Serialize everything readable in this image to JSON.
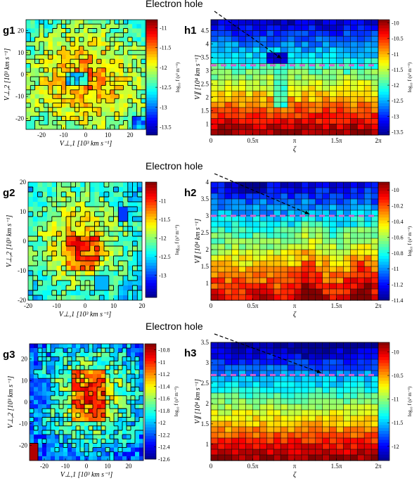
{
  "annotation_text": "Electron hole",
  "palette": [
    "#00008f",
    "#0000ff",
    "#0080ff",
    "#00ffff",
    "#80ff80",
    "#ffff00",
    "#ff8000",
    "#ff0000",
    "#800000"
  ],
  "hole_marker_color": "#d65fd0",
  "chart_data": [
    {
      "id": "g1",
      "type": "heatmap",
      "panel_label": "g1",
      "xlabel": "V⊥,1 [10³ km s⁻¹]",
      "ylabel": "V⊥,2 [10³ km s⁻¹]",
      "xlim": [
        -27,
        27
      ],
      "ylim": [
        -25,
        25
      ],
      "xticks": [
        -20,
        -10,
        0,
        10,
        20
      ],
      "xticklabels": [
        "-20",
        "-10",
        "0",
        "10",
        "20"
      ],
      "yticks": [
        -20,
        -10,
        0,
        10,
        20
      ],
      "yticklabels": [
        "-20",
        "-10",
        "0",
        "10",
        "20"
      ],
      "grid_cells": [
        27,
        25
      ],
      "clabel": "log₁₀ f (s³ m⁻⁶)",
      "clim": [
        -13.7,
        -10.8
      ],
      "cticks": [
        -11,
        -11.5,
        -12,
        -12.5,
        -13,
        -13.5
      ],
      "cticklabels": [
        "-11",
        "-11.5",
        "-12",
        "-12.5",
        "-13",
        "-13.5"
      ],
      "contours": true,
      "cell_grid": false
    },
    {
      "id": "h1",
      "type": "heatmap",
      "panel_label": "h1",
      "xlabel": "ζ",
      "ylabel": "V∥ [10⁴ km s⁻¹]",
      "xlim": [
        0,
        6.283
      ],
      "ylim": [
        0.6,
        4.9
      ],
      "xticks": [
        0,
        1.5708,
        3.1416,
        4.7124,
        6.2832
      ],
      "xticklabels": [
        "0",
        "0.5π",
        "π",
        "1.5π",
        "2π"
      ],
      "yticks": [
        1,
        1.5,
        2,
        2.5,
        3,
        3.5,
        4,
        4.5
      ],
      "yticklabels": [
        "1",
        "1.5",
        "2",
        "2.5",
        "3",
        "3.5",
        "4",
        "4.5"
      ],
      "grid_cells": [
        24,
        21
      ],
      "clabel": "log₁₀ f (s³ m⁻⁶)",
      "clim": [
        -13.6,
        -9.9
      ],
      "cticks": [
        -10,
        -10.5,
        -11,
        -11.5,
        -12,
        -12.5,
        -13,
        -13.5
      ],
      "cticklabels": [
        "-10",
        "-10.5",
        "-11",
        "-11.5",
        "-12",
        "-12.5",
        "-13",
        "-13.5"
      ],
      "contours": false,
      "cell_grid": true,
      "hole_velocity": 3.2,
      "arrow_target": {
        "x": 2.65,
        "y": 3.45
      }
    },
    {
      "id": "g2",
      "type": "heatmap",
      "panel_label": "g2",
      "xlabel": "V⊥,1 [10³ km s⁻¹]",
      "ylabel": "V⊥,2 [10³ km s⁻¹]",
      "xlim": [
        -20,
        20
      ],
      "ylim": [
        -20,
        20
      ],
      "xticks": [
        -20,
        -10,
        0,
        10,
        20
      ],
      "xticklabels": [
        "-20",
        "-10",
        "0",
        "10",
        "20"
      ],
      "yticks": [
        -20,
        -10,
        0,
        10,
        20
      ],
      "yticklabels": [
        "-20",
        "-10",
        "0",
        "10",
        "20"
      ],
      "grid_cells": [
        24,
        24
      ],
      "clabel": "log₁₀ f (s³ m⁻⁶)",
      "clim": [
        -13.6,
        -10.5
      ],
      "cticks": [
        -11,
        -11.5,
        -12,
        -12.5,
        -13
      ],
      "cticklabels": [
        "-11",
        "-11.5",
        "-12",
        "-12.5",
        "-13"
      ],
      "contours": true,
      "cell_grid": false
    },
    {
      "id": "h2",
      "type": "heatmap",
      "panel_label": "h2",
      "xlabel": "ζ",
      "ylabel": "V∥ [10⁴ km s⁻¹]",
      "xlim": [
        0,
        6.283
      ],
      "ylim": [
        0.5,
        4.0
      ],
      "xticks": [
        0,
        1.5708,
        3.1416,
        4.7124,
        6.2832
      ],
      "xticklabels": [
        "0",
        "0.5π",
        "π",
        "1.5π",
        "2π"
      ],
      "yticks": [
        1,
        1.5,
        2,
        2.5,
        3,
        3.5,
        4
      ],
      "yticklabels": [
        "1",
        "1.5",
        "2",
        "2.5",
        "3",
        "3.5",
        "4"
      ],
      "grid_cells": [
        24,
        21
      ],
      "clabel": "log₁₀ f (s³ m⁻⁶)",
      "clim": [
        -11.4,
        -9.9
      ],
      "cticks": [
        -10,
        -10.2,
        -10.4,
        -10.6,
        -10.8,
        -11,
        -11.2,
        -11.4
      ],
      "cticklabels": [
        "-10",
        "-10.2",
        "-10.4",
        "-10.6",
        "-10.8",
        "-11",
        "-11.2",
        "-11.4"
      ],
      "contours": false,
      "cell_grid": true,
      "hole_velocity": 3.0,
      "arrow_target": {
        "x": 3.7,
        "y": 3.05
      }
    },
    {
      "id": "g3",
      "type": "heatmap",
      "panel_label": "g3",
      "xlabel": "V⊥,1 [10³ km s⁻¹]",
      "ylabel": "V⊥,2 [10³ km s⁻¹]",
      "xlim": [
        -27,
        27
      ],
      "ylim": [
        -27,
        27
      ],
      "xticks": [
        -20,
        -10,
        0,
        10,
        20
      ],
      "xticklabels": [
        "-20",
        "-10",
        "0",
        "10",
        "20"
      ],
      "yticks": [
        -20,
        -10,
        0,
        10,
        20
      ],
      "yticklabels": [
        "-20",
        "-10",
        "0",
        "10",
        "20"
      ],
      "grid_cells": [
        27,
        27
      ],
      "clabel": "log₁₀ f (s³ m⁻⁶)",
      "clim": [
        -12.6,
        -10.7
      ],
      "cticks": [
        -10.8,
        -11,
        -11.2,
        -11.4,
        -11.6,
        -11.8,
        -12,
        -12.2,
        -12.4,
        -12.6
      ],
      "cticklabels": [
        "-10.8",
        "-11",
        "-11.2",
        "-11.4",
        "-11.6",
        "-11.8",
        "-12",
        "-12.2",
        "-12.4",
        "-12.6"
      ],
      "contours": true,
      "cell_grid": false
    },
    {
      "id": "h3",
      "type": "heatmap",
      "panel_label": "h3",
      "xlabel": "ζ",
      "ylabel": "V∥ [10⁴ km s⁻¹]",
      "xlim": [
        0,
        6.283
      ],
      "ylim": [
        0.6,
        3.5
      ],
      "xticks": [
        0,
        1.5708,
        3.1416,
        4.7124,
        6.2832
      ],
      "xticklabels": [
        "0",
        "0.5π",
        "π",
        "1.5π",
        "2π"
      ],
      "yticks": [
        1,
        1.5,
        2,
        2.5,
        3,
        3.5
      ],
      "yticklabels": [
        "1",
        "1.5",
        "2",
        "2.5",
        "3",
        "3.5"
      ],
      "grid_cells": [
        24,
        21
      ],
      "clabel": "log₁₀ f (s³ m⁻⁶)",
      "clim": [
        -12.3,
        -9.8
      ],
      "cticks": [
        -10,
        -10.5,
        -11,
        -11.5,
        -12
      ],
      "cticklabels": [
        "-10",
        "-10.5",
        "-11",
        "-11.5",
        "-12"
      ],
      "contours": false,
      "cell_grid": true,
      "hole_velocity": 2.7,
      "arrow_target": {
        "x": 4.15,
        "y": 2.75
      }
    }
  ]
}
